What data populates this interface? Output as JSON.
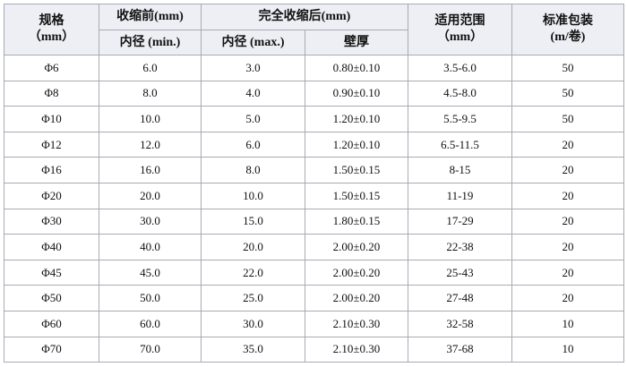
{
  "table": {
    "header": {
      "spec": [
        "规格",
        "（mm）"
      ],
      "before": "收缩前(mm)",
      "before_sub": "内径 (min.)",
      "after": "完全收缩后(mm)",
      "after_sub": [
        "内径 (max.)",
        "壁厚"
      ],
      "range": [
        "适用范围",
        "（mm）"
      ],
      "pack": [
        "标准包装",
        "(m/卷)"
      ]
    },
    "rows": [
      [
        "Φ6",
        "6.0",
        "3.0",
        "0.80±0.10",
        "3.5-6.0",
        "50"
      ],
      [
        "Φ8",
        "8.0",
        "4.0",
        "0.90±0.10",
        "4.5-8.0",
        "50"
      ],
      [
        "Φ10",
        "10.0",
        "5.0",
        "1.20±0.10",
        "5.5-9.5",
        "50"
      ],
      [
        "Φ12",
        "12.0",
        "6.0",
        "1.20±0.10",
        "6.5-11.5",
        "20"
      ],
      [
        "Φ16",
        "16.0",
        "8.0",
        "1.50±0.15",
        "8-15",
        "20"
      ],
      [
        "Φ20",
        "20.0",
        "10.0",
        "1.50±0.15",
        "11-19",
        "20"
      ],
      [
        "Φ30",
        "30.0",
        "15.0",
        "1.80±0.15",
        "17-29",
        "20"
      ],
      [
        "Φ40",
        "40.0",
        "20.0",
        "2.00±0.20",
        "22-38",
        "20"
      ],
      [
        "Φ45",
        "45.0",
        "22.0",
        "2.00±0.20",
        "25-43",
        "20"
      ],
      [
        "Φ50",
        "50.0",
        "25.0",
        "2.00±0.20",
        "27-48",
        "20"
      ],
      [
        "Φ60",
        "60.0",
        "30.0",
        "2.10±0.30",
        "32-58",
        "10"
      ],
      [
        "Φ70",
        "70.0",
        "35.0",
        "2.10±0.30",
        "37-68",
        "10"
      ]
    ]
  }
}
